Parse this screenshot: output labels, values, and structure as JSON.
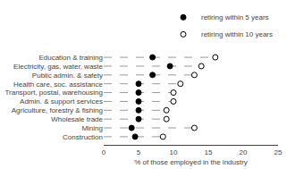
{
  "chart_data": {
    "type": "dot",
    "orientation": "horizontal",
    "categories": [
      "Education & training",
      "Electricity, gas, water, waste",
      "Public admin. & safety",
      "Health care, soc. assistance",
      "Transport, postal, warehousing",
      "Admin. & support services",
      "Agriculture, forestry & fishing",
      "Wholesale trade",
      "Mining",
      "Construction"
    ],
    "series": [
      {
        "name": "retiring within 5 years",
        "color": "#000000",
        "marker": "circle",
        "values": [
          7,
          9.5,
          7,
          5,
          5,
          5,
          5,
          5,
          4,
          4.5
        ]
      },
      {
        "name": "retiring within 10 years",
        "color": "#ffffff",
        "marker": "circle",
        "line_style": "dashed",
        "values": [
          16,
          14,
          13,
          11,
          10,
          10,
          9,
          9,
          13,
          8.5
        ]
      }
    ],
    "xlabel": "% of those employed in the industry",
    "xlim": [
      0,
      25
    ],
    "xticks": [
      0,
      5,
      10,
      15,
      20,
      25
    ],
    "grid": false,
    "legend": "top"
  }
}
